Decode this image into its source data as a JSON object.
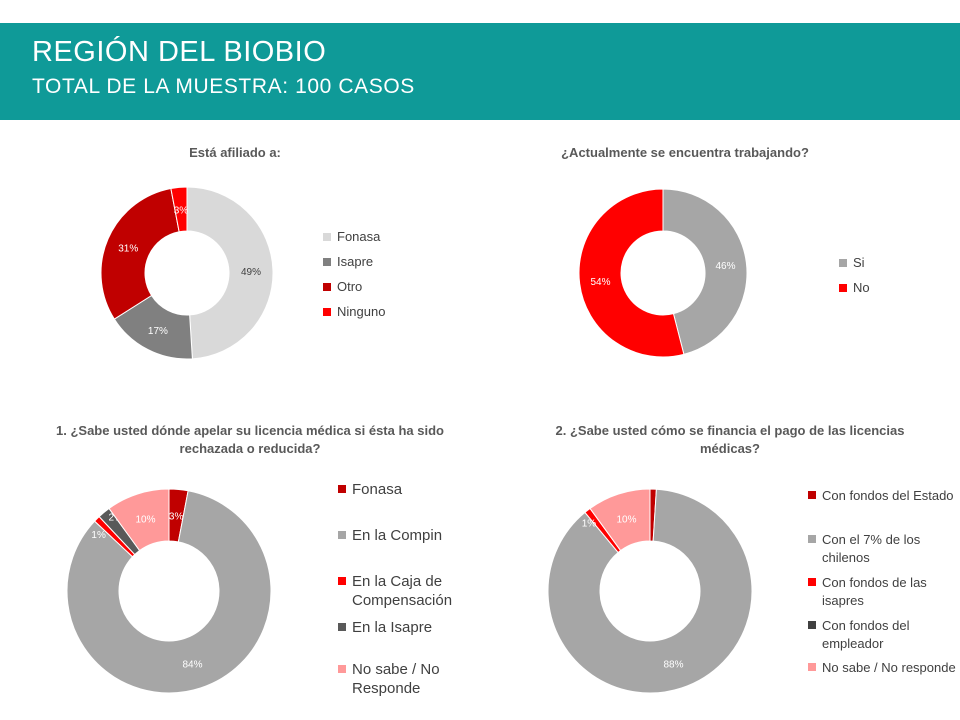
{
  "header": {
    "title": "REGIÓN DEL BIOBIO",
    "subtitle": "TOTAL DE LA MUESTRA: 100 CASOS"
  },
  "chart_data": [
    {
      "type": "pie",
      "title": "Está afiliado a:",
      "categories": [
        "Fonasa",
        "Isapre",
        "Otro",
        "Ninguno"
      ],
      "values": [
        49,
        17,
        31,
        3
      ],
      "labels": [
        "49%",
        "17%",
        "31%",
        "3%"
      ],
      "colors": [
        "#d9d9d9",
        "#808080",
        "#c00000",
        "#ff0000"
      ],
      "legend_position": "right"
    },
    {
      "type": "pie",
      "title": "¿Actualmente se encuentra trabajando?",
      "categories": [
        "Si",
        "No"
      ],
      "values": [
        46,
        54
      ],
      "labels": [
        "46%",
        "54%"
      ],
      "colors": [
        "#a6a6a6",
        "#ff0000"
      ],
      "legend_position": "right"
    },
    {
      "type": "pie",
      "title": "1. ¿Sabe usted dónde apelar su licencia médica si ésta ha sido rechazada o reducida?",
      "categories": [
        "Fonasa",
        "En la Compin",
        "En la Caja de Compensación",
        "En la Isapre",
        "No sabe / No Responde"
      ],
      "values": [
        3,
        84,
        1,
        2,
        10
      ],
      "labels": [
        "3%",
        "84%",
        "1%",
        "2%",
        "10%"
      ],
      "colors": [
        "#c00000",
        "#a6a6a6",
        "#ff0000",
        "#595959",
        "#ff9999"
      ],
      "legend_position": "right"
    },
    {
      "type": "pie",
      "title": "2. ¿Sabe usted cómo se financia el pago de las licencias médicas?",
      "categories": [
        "Con fondos del Estado",
        "Con el 7% de los chilenos",
        "Con fondos de las isapres",
        "Con fondos del empleador",
        "No sabe / No responde"
      ],
      "values": [
        1,
        88,
        1,
        0,
        10
      ],
      "labels": [
        "1%",
        "88%",
        "1%",
        "",
        "10%"
      ],
      "colors": [
        "#c00000",
        "#a6a6a6",
        "#ff0000",
        "#404040",
        "#ff9999"
      ],
      "legend_position": "right"
    }
  ]
}
